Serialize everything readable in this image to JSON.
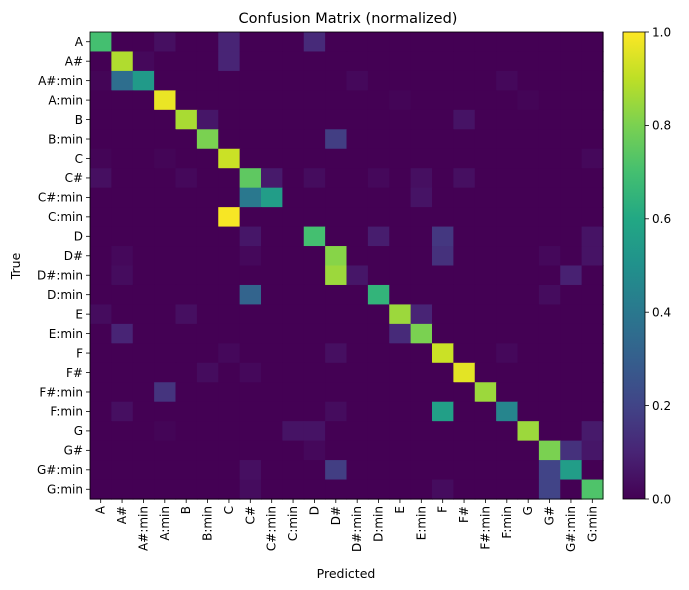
{
  "chart_data": {
    "type": "heatmap",
    "title": "Confusion Matrix (normalized)",
    "xlabel": "Predicted",
    "ylabel": "True",
    "labels": [
      "A",
      "A#",
      "A#:min",
      "A:min",
      "B",
      "B:min",
      "C",
      "C#",
      "C#:min",
      "C:min",
      "D",
      "D#",
      "D#:min",
      "D:min",
      "E",
      "E:min",
      "F",
      "F#",
      "F#:min",
      "F:min",
      "G",
      "G#",
      "G#:min",
      "G:min"
    ],
    "colorbar": {
      "min": 0.0,
      "max": 1.0,
      "ticks": [
        "0.0",
        "0.2",
        "0.4",
        "0.6",
        "0.8",
        "1.0"
      ],
      "colormap": "viridis"
    },
    "cells": [
      {
        "true": "A",
        "values": {
          "A": 0.7,
          "A:min": 0.04,
          "C": 0.1,
          "D": 0.12
        }
      },
      {
        "true": "A#",
        "values": {
          "A#": 0.88,
          "A#:min": 0.02,
          "C": 0.1
        }
      },
      {
        "true": "A#:min",
        "values": {
          "A": 0.01,
          "A#": 0.36,
          "A#:min": 0.54,
          "D#:min": 0.02,
          "F:min": 0.02
        }
      },
      {
        "true": "A:min",
        "values": {
          "A:min": 0.97,
          "E": 0.01,
          "G": 0.01
        }
      },
      {
        "true": "B",
        "values": {
          "B": 0.87,
          "B:min": 0.06,
          "F#": 0.05
        }
      },
      {
        "true": "B:min",
        "values": {
          "B:min": 0.8,
          "D#": 0.18
        }
      },
      {
        "true": "C",
        "values": {
          "A": 0.01,
          "A:min": 0.01,
          "C": 0.92,
          "G:min": 0.02
        }
      },
      {
        "true": "C#",
        "values": {
          "A": 0.04,
          "B": 0.02,
          "C#": 0.75,
          "C#:min": 0.07,
          "D": 0.03,
          "D:min": 0.02,
          "E:min": 0.04,
          "F#": 0.04
        }
      },
      {
        "true": "C#:min",
        "values": {
          "C#": 0.4,
          "C#:min": 0.55,
          "E:min": 0.05
        }
      },
      {
        "true": "C:min",
        "values": {
          "C": 0.99
        }
      },
      {
        "true": "D",
        "values": {
          "C#": 0.06,
          "D": 0.7,
          "D:min": 0.08,
          "F": 0.16,
          "G:min": 0.05
        }
      },
      {
        "true": "D#",
        "values": {
          "A#": 0.02,
          "C#": 0.02,
          "D#": 0.82,
          "F": 0.14,
          "G#": 0.02,
          "G:min": 0.05
        }
      },
      {
        "true": "D#:min",
        "values": {
          "A#": 0.03,
          "D#": 0.85,
          "D#:min": 0.06,
          "G#:min": 0.09
        }
      },
      {
        "true": "D:min",
        "values": {
          "C#": 0.32,
          "D:min": 0.65,
          "G#": 0.03
        }
      },
      {
        "true": "E",
        "values": {
          "A": 0.03,
          "B": 0.04,
          "E": 0.85,
          "E:min": 0.1
        }
      },
      {
        "true": "E:min",
        "values": {
          "A#": 0.1,
          "E": 0.12,
          "E:min": 0.8
        }
      },
      {
        "true": "F",
        "values": {
          "C": 0.02,
          "D#": 0.04,
          "F": 0.92,
          "F:min": 0.02
        }
      },
      {
        "true": "F#",
        "values": {
          "B:min": 0.03,
          "C#": 0.02,
          "F#": 0.96
        }
      },
      {
        "true": "F#:min",
        "values": {
          "A:min": 0.15,
          "F#:min": 0.85
        }
      },
      {
        "true": "F:min",
        "values": {
          "A#": 0.04,
          "D#": 0.03,
          "F": 0.56,
          "F:min": 0.45
        }
      },
      {
        "true": "G",
        "values": {
          "A:min": 0.01,
          "C:min": 0.05,
          "D": 0.05,
          "G": 0.85,
          "G:min": 0.07
        }
      },
      {
        "true": "G#",
        "values": {
          "D": 0.02,
          "G#": 0.8,
          "G#:min": 0.14,
          "G:min": 0.06
        }
      },
      {
        "true": "G#:min",
        "values": {
          "C#": 0.04,
          "D#": 0.18,
          "G#": 0.2,
          "G#:min": 0.55
        }
      },
      {
        "true": "G:min",
        "values": {
          "C#": 0.03,
          "F": 0.03,
          "G#": 0.2,
          "G:min": 0.72
        }
      }
    ]
  }
}
